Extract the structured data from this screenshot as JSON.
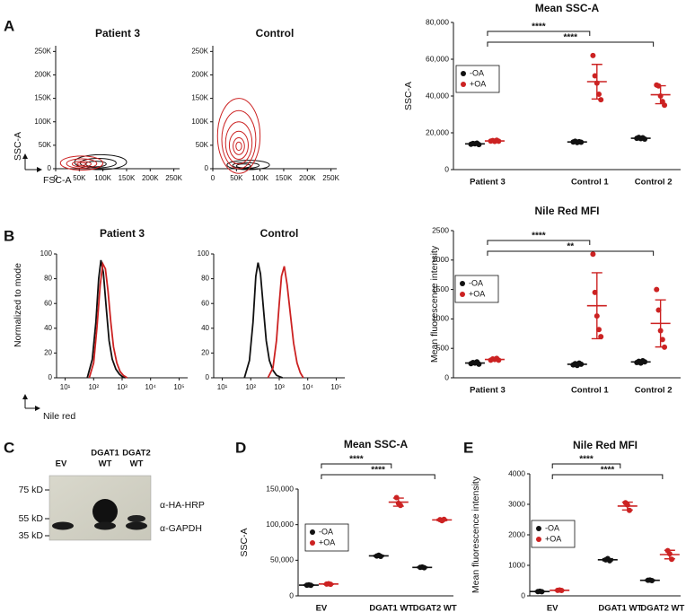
{
  "panels": [
    "A",
    "B",
    "C",
    "D",
    "E"
  ],
  "blot": {
    "lanes": [
      [
        "EV"
      ],
      [
        "DGAT1",
        "WT"
      ],
      [
        "DGAT2",
        "WT"
      ]
    ],
    "markers": [
      "75 kD",
      "55 kD",
      "35 kD"
    ],
    "bands": [
      "α-HA-HRP",
      "α-GAPDH"
    ]
  },
  "chart_data": [
    {
      "type": "contour",
      "title": "Patient 3",
      "xlabel": "FSC-A",
      "ylabel": "SSC-A",
      "xlim": [
        0,
        262144
      ],
      "ylim": [
        0,
        262144
      ],
      "xticks": [
        0,
        {
          "value": 50000,
          "label": "50K"
        },
        {
          "value": 100000,
          "label": "100K"
        },
        {
          "value": 150000,
          "label": "150K"
        },
        {
          "value": 200000,
          "label": "200K"
        },
        {
          "value": 250000,
          "label": "250K"
        }
      ],
      "yticks": [
        0,
        {
          "value": 50000,
          "label": "50K"
        },
        {
          "value": 100000,
          "label": "100K"
        },
        {
          "value": 150000,
          "label": "150K"
        },
        {
          "value": 200000,
          "label": "200K"
        },
        {
          "value": 250000,
          "label": "250K"
        }
      ],
      "populations": [
        {
          "color": "#111111",
          "rings": [
            [
              95000,
              14000,
              55000,
              16000
            ],
            [
              90000,
              12000,
              38000,
              10000
            ],
            [
              85000,
              10000,
              22000,
              6000
            ]
          ]
        },
        {
          "color": "#cc2222",
          "rings": [
            [
              55000,
              12000,
              45000,
              15000
            ],
            [
              55000,
              11000,
              32000,
              10000
            ],
            [
              55000,
              10000,
              20000,
              6000
            ],
            [
              55000,
              10000,
              10000,
              3000
            ]
          ]
        }
      ]
    },
    {
      "type": "contour",
      "title": "Control",
      "xlim": [
        0,
        262144
      ],
      "ylim": [
        0,
        262144
      ],
      "xticks": [
        0,
        {
          "value": 50000,
          "label": "50K"
        },
        {
          "value": 100000,
          "label": "100K"
        },
        {
          "value": 150000,
          "label": "150K"
        },
        {
          "value": 200000,
          "label": "200K"
        },
        {
          "value": 250000,
          "label": "250K"
        }
      ],
      "yticks": [
        0,
        {
          "value": 50000,
          "label": "50K"
        },
        {
          "value": 100000,
          "label": "100K"
        },
        {
          "value": 150000,
          "label": "150K"
        },
        {
          "value": 200000,
          "label": "200K"
        },
        {
          "value": 250000,
          "label": "250K"
        }
      ],
      "populations": [
        {
          "color": "#111111",
          "rings": [
            [
              75000,
              8000,
              45000,
              10000
            ],
            [
              70000,
              7000,
              28000,
              6000
            ],
            [
              65000,
              6000,
              15000,
              4000
            ]
          ]
        },
        {
          "color": "#cc2222",
          "rings": [
            [
              55000,
              70000,
              45000,
              80000
            ],
            [
              55000,
              62000,
              36000,
              62000
            ],
            [
              55000,
              55000,
              28000,
              45000
            ],
            [
              55000,
              50000,
              20000,
              30000
            ],
            [
              55000,
              48000,
              12000,
              18000
            ],
            [
              55000,
              48000,
              6000,
              9000
            ]
          ]
        }
      ]
    },
    {
      "type": "dot",
      "title": "Mean SSC-A",
      "ylabel": "SSC-A",
      "categories": [
        "Patient 3",
        "Control 1",
        "Control 2"
      ],
      "ylim": [
        0,
        80000
      ],
      "yticks": [
        0,
        {
          "value": 20000,
          "label": "20,000"
        },
        {
          "value": 40000,
          "label": "40,000"
        },
        {
          "value": 60000,
          "label": "60,000"
        },
        {
          "value": 80000,
          "label": "80,000"
        }
      ],
      "series": [
        {
          "name": "-OA",
          "color": "#111111",
          "values": [
            [
              13800,
              14200,
              14000,
              14400,
              13600
            ],
            [
              15000,
              15400,
              14700,
              15200,
              14900
            ],
            [
              17000,
              17500,
              16800,
              17300,
              16600
            ]
          ],
          "means": [
            14000,
            15040,
            17040
          ],
          "sd": [
            300,
            260,
            350
          ]
        },
        {
          "name": "+OA",
          "color": "#cc2222",
          "values": [
            [
              15500,
              15800,
              15300,
              16000,
              15400
            ],
            [
              62000,
              51000,
              47000,
              41000,
              38000
            ],
            [
              46000,
              45500,
              40000,
              37000,
              35000
            ]
          ],
          "means": [
            15600,
            47800,
            40700
          ],
          "sd": [
            280,
            9400,
            4900
          ]
        }
      ],
      "brackets": [
        {
          "label": "****",
          "from": "Patient 3",
          "to": "Control 1"
        },
        {
          "label": "****",
          "from": "Patient 3",
          "to": "Control 2"
        }
      ]
    },
    {
      "type": "line",
      "title": "Patient 3",
      "xlabel": "Nile red",
      "ylabel": "Normalized to mode",
      "xscale": "log",
      "xlim": [
        5,
        200000
      ],
      "ylim": [
        0,
        100
      ],
      "xticks": [
        {
          "value": 10,
          "label": "10¹"
        },
        {
          "value": 100,
          "label": "10²"
        },
        {
          "value": 1000,
          "label": "10³"
        },
        {
          "value": 10000,
          "label": "10⁴"
        },
        {
          "value": 100000,
          "label": "10⁵"
        }
      ],
      "yticks": [
        0,
        20,
        40,
        60,
        80,
        100
      ],
      "series": [
        {
          "color": "#111111",
          "x": [
            60,
            90,
            120,
            150,
            180,
            220,
            280,
            350,
            450,
            600,
            800,
            1000,
            1300
          ],
          "values": [
            0,
            15,
            45,
            80,
            95,
            85,
            55,
            30,
            15,
            7,
            3,
            1,
            0
          ]
        },
        {
          "color": "#cc2222",
          "x": [
            70,
            100,
            130,
            170,
            210,
            260,
            320,
            400,
            500,
            650,
            850,
            1100,
            1500
          ],
          "values": [
            0,
            12,
            40,
            75,
            92,
            88,
            70,
            45,
            25,
            12,
            5,
            2,
            0
          ]
        }
      ]
    },
    {
      "type": "line",
      "title": "Control",
      "xscale": "log",
      "xlim": [
        5,
        200000
      ],
      "ylim": [
        0,
        100
      ],
      "xticks": [
        {
          "value": 10,
          "label": "10¹"
        },
        {
          "value": 100,
          "label": "10²"
        },
        {
          "value": 1000,
          "label": "10³"
        },
        {
          "value": 10000,
          "label": "10⁴"
        },
        {
          "value": 100000,
          "label": "10⁵"
        }
      ],
      "yticks": [
        0,
        20,
        40,
        60,
        80,
        100
      ],
      "series": [
        {
          "color": "#111111",
          "x": [
            60,
            90,
            120,
            150,
            180,
            220,
            280,
            350,
            450,
            600,
            800,
            1000,
            1300
          ],
          "values": [
            0,
            14,
            45,
            82,
            93,
            84,
            55,
            30,
            14,
            6,
            2,
            1,
            0
          ]
        },
        {
          "color": "#cc2222",
          "x": [
            400,
            600,
            800,
            1000,
            1200,
            1500,
            1900,
            2500,
            3200,
            4200,
            5500,
            7000
          ],
          "values": [
            0,
            8,
            30,
            60,
            82,
            90,
            75,
            50,
            28,
            12,
            4,
            0
          ]
        }
      ]
    },
    {
      "type": "dot",
      "title": "Nile Red MFI",
      "ylabel": "Mean fluorescence intensity",
      "categories": [
        "Patient 3",
        "Control 1",
        "Control 2"
      ],
      "ylim": [
        0,
        2500
      ],
      "yticks": [
        0,
        500,
        1000,
        1500,
        2000,
        2500
      ],
      "series": [
        {
          "name": "-OA",
          "color": "#111111",
          "values": [
            [
              240,
              260,
              250,
              270,
              230
            ],
            [
              220,
              240,
              210,
              250,
              230
            ],
            [
              260,
              280,
              250,
              290,
              270
            ]
          ],
          "means": [
            250,
            230,
            270
          ],
          "sd": [
            15,
            15,
            15
          ]
        },
        {
          "name": "+OA",
          "color": "#cc2222",
          "values": [
            [
              300,
              320,
              310,
              330,
              300
            ],
            [
              2100,
              1450,
              1050,
              820,
              700
            ],
            [
              1500,
              1150,
              800,
              650,
              520
            ]
          ],
          "means": [
            312,
            1224,
            924
          ],
          "sd": [
            13,
            560,
            400
          ]
        }
      ],
      "brackets": [
        {
          "label": "****",
          "from": "Patient 3",
          "to": "Control 1"
        },
        {
          "label": "**",
          "from": "Patient 3",
          "to": "Control 2"
        }
      ]
    },
    {
      "type": "dot",
      "title": "Mean SSC-A",
      "ylabel": "SSC-A",
      "categories": [
        "EV",
        "DGAT1 WT",
        "DGAT2 WT"
      ],
      "ylim": [
        0,
        150000
      ],
      "yticks": [
        0,
        {
          "value": 50000,
          "label": "50,000"
        },
        {
          "value": 100000,
          "label": "100,000"
        },
        {
          "value": 150000,
          "label": "150,000"
        }
      ],
      "series": [
        {
          "name": "-OA",
          "color": "#111111",
          "values": [
            [
              15000,
              15500,
              14800
            ],
            [
              56000,
              57000,
              55500
            ],
            [
              40000,
              40500,
              39500
            ]
          ],
          "means": [
            15100,
            56170,
            40000
          ],
          "sd": [
            360,
            760,
            500
          ]
        },
        {
          "name": "+OA",
          "color": "#cc2222",
          "values": [
            [
              16500,
              17000,
              16200
            ],
            [
              138000,
              130000,
              127000
            ],
            [
              107000,
              105500,
              107500
            ]
          ],
          "means": [
            16570,
            131670,
            106670
          ],
          "sd": [
            400,
            5690,
            1040
          ]
        }
      ],
      "brackets": [
        {
          "label": "****",
          "from": "EV",
          "to": "DGAT1 WT"
        },
        {
          "label": "****",
          "from": "EV",
          "to": "DGAT2 WT"
        }
      ]
    },
    {
      "type": "dot",
      "title": "Nile Red MFI",
      "ylabel": "Mean fluorescence intensity",
      "categories": [
        "EV",
        "DGAT1 WT",
        "DGAT2 WT"
      ],
      "ylim": [
        0,
        4000
      ],
      "yticks": [
        0,
        1000,
        2000,
        3000,
        4000
      ],
      "series": [
        {
          "name": "-OA",
          "color": "#111111",
          "values": [
            [
              140,
              150,
              135
            ],
            [
              1180,
              1220,
              1150
            ],
            [
              510,
              520,
              500
            ]
          ],
          "means": [
            142,
            1183,
            510
          ],
          "sd": [
            8,
            35,
            10
          ]
        },
        {
          "name": "+OA",
          "color": "#cc2222",
          "values": [
            [
              180,
              190,
              175
            ],
            [
              3050,
              2980,
              2800
            ],
            [
              1480,
              1380,
              1200
            ]
          ],
          "means": [
            182,
            2943,
            1353
          ],
          "sd": [
            8,
            130,
            140
          ]
        }
      ],
      "brackets": [
        {
          "label": "****",
          "from": "EV",
          "to": "DGAT1 WT"
        },
        {
          "label": "****",
          "from": "EV",
          "to": "DGAT2 WT"
        }
      ]
    }
  ]
}
